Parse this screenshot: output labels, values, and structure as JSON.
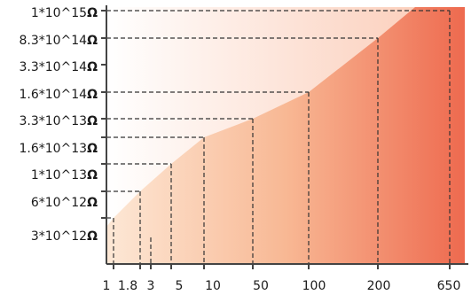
{
  "chart_data": {
    "type": "area",
    "title": "",
    "xlabel": "",
    "ylabel": "",
    "x_tick_labels": [
      "1",
      "1.8",
      "3",
      "5",
      "10",
      "50",
      "100",
      "200",
      "650"
    ],
    "y_tick_labels": [
      "1*10^15Ω",
      "8.3*10^14Ω",
      "3.3*10^14Ω",
      "1.6*10^14Ω",
      "3.3*10^13Ω",
      "1.6*10^13Ω",
      "1*10^13Ω",
      "6*10^12Ω",
      "3*10^12Ω"
    ],
    "points": [
      {
        "x": "1",
        "y": "3*10^12Ω"
      },
      {
        "x": "1.8",
        "y": "6*10^12Ω"
      },
      {
        "x": "5",
        "y": "1*10^13Ω"
      },
      {
        "x": "10",
        "y": "1.6*10^13Ω"
      },
      {
        "x": "50",
        "y": "3.3*10^13Ω"
      },
      {
        "x": "100",
        "y": "1.6*10^14Ω"
      },
      {
        "x": "200",
        "y": "8.3*10^14Ω"
      },
      {
        "x": "650",
        "y": "1*10^15Ω"
      }
    ],
    "grid": false,
    "legend": "none",
    "colors": {
      "lower_light": "#fde8d6",
      "lower_dark": "#ee6a4f",
      "upper_light": "#ffffff",
      "upper_dark": "#fbc9b3"
    }
  }
}
